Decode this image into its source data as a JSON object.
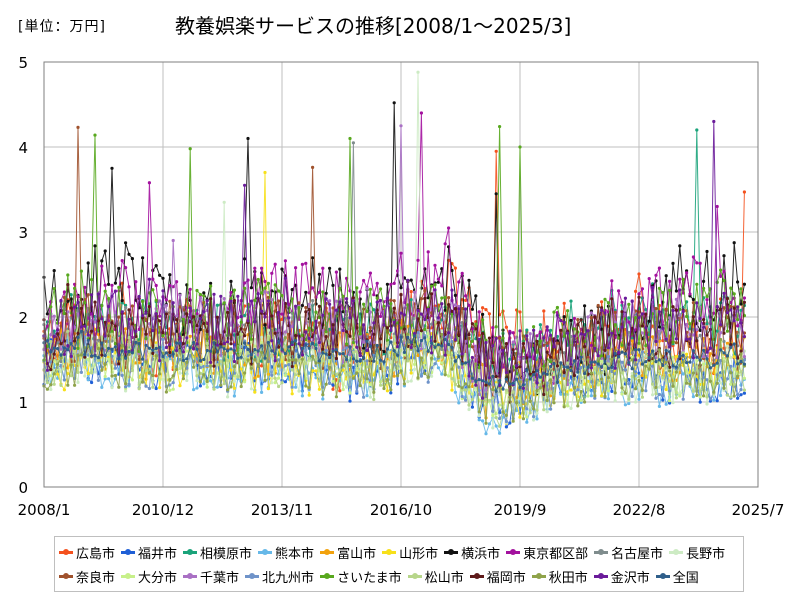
{
  "header": {
    "unit_label": "[単位：万円]",
    "title": "教養娯楽サービスの推移[2008/1～2025/3]"
  },
  "chart_data": {
    "type": "line",
    "title": "教養娯楽サービスの推移[2008/1～2025/3]",
    "unit": "万円",
    "x_range": [
      "2008/1",
      "2025/7"
    ],
    "x_ticks": [
      "2008/1",
      "2010/12",
      "2013/11",
      "2016/10",
      "2019/9",
      "2022/8",
      "2025/7"
    ],
    "ylim": [
      0,
      5
    ],
    "y_ticks": [
      "0",
      "1",
      "2",
      "3",
      "4",
      "5"
    ],
    "grid": true,
    "legend_position": "bottom",
    "series": [
      {
        "name": "広島市",
        "color": "#f4511e",
        "anchors": [
          1.65,
          1.9,
          1.75,
          1.7,
          1.8,
          1.7,
          1.8,
          1.6,
          1.55,
          1.5,
          1.95,
          2.3,
          1.7,
          1.65,
          1.75,
          1.8,
          1.95,
          1.75,
          1.6,
          1.7
        ],
        "noise": 0.42,
        "spikes": [
          {
            "x": "2019/2",
            "y": 3.95
          },
          {
            "x": "2025/3",
            "y": 3.47
          }
        ]
      },
      {
        "name": "福井市",
        "color": "#1f5fd6",
        "anchors": [
          1.45,
          1.55,
          1.4,
          1.45,
          1.5,
          1.35,
          1.5,
          1.4,
          1.3,
          1.25,
          1.6,
          1.55,
          0.95,
          1.05,
          1.15,
          1.3,
          1.35,
          1.25,
          1.3,
          1.35
        ],
        "noise": 0.3,
        "spikes": []
      },
      {
        "name": "相模原市",
        "color": "#1aa37a",
        "anchors": [
          1.8,
          1.95,
          1.85,
          1.8,
          1.9,
          1.75,
          1.85,
          1.7,
          1.75,
          1.8,
          1.95,
          1.9,
          1.45,
          1.5,
          1.65,
          1.75,
          1.85,
          1.9,
          1.85,
          1.9
        ],
        "noise": 0.38,
        "spikes": [
          {
            "x": "2024/1",
            "y": 4.2
          }
        ]
      },
      {
        "name": "熊本市",
        "color": "#66b8e8",
        "anchors": [
          1.35,
          1.45,
          1.4,
          1.35,
          1.4,
          1.3,
          1.4,
          1.35,
          1.25,
          1.3,
          1.5,
          1.4,
          0.75,
          1.0,
          1.1,
          1.2,
          1.25,
          1.2,
          1.2,
          1.25
        ],
        "noise": 0.28,
        "spikes": []
      },
      {
        "name": "富山市",
        "color": "#f2a20d",
        "anchors": [
          1.55,
          1.7,
          1.6,
          1.55,
          1.6,
          1.5,
          1.6,
          1.55,
          1.5,
          1.45,
          1.75,
          1.7,
          1.1,
          1.25,
          1.4,
          1.5,
          1.6,
          1.55,
          1.55,
          1.6
        ],
        "noise": 0.32,
        "spikes": []
      },
      {
        "name": "山形市",
        "color": "#f7e01a",
        "anchors": [
          1.4,
          1.5,
          1.45,
          1.4,
          1.5,
          1.4,
          1.45,
          1.4,
          1.35,
          1.3,
          1.55,
          1.5,
          1.0,
          1.1,
          1.2,
          1.3,
          1.4,
          1.35,
          1.4,
          1.45
        ],
        "noise": 0.33,
        "spikes": [
          {
            "x": "2013/6",
            "y": 3.7
          }
        ]
      },
      {
        "name": "横浜市",
        "color": "#111111",
        "anchors": [
          2.0,
          2.3,
          2.5,
          2.2,
          2.1,
          2.0,
          2.1,
          2.2,
          2.1,
          2.0,
          2.3,
          2.5,
          1.5,
          1.45,
          1.55,
          1.75,
          2.0,
          2.3,
          2.3,
          2.2
        ],
        "noise": 0.48,
        "spikes": [
          {
            "x": "2009/9",
            "y": 3.75
          },
          {
            "x": "2013/1",
            "y": 4.1
          },
          {
            "x": "2016/8",
            "y": 4.52
          },
          {
            "x": "2019/2",
            "y": 3.45
          }
        ]
      },
      {
        "name": "東京都区部",
        "color": "#a3119e",
        "anchors": [
          1.9,
          2.1,
          2.2,
          2.0,
          2.05,
          2.1,
          2.2,
          2.25,
          2.2,
          2.15,
          2.4,
          2.5,
          1.55,
          1.5,
          1.6,
          1.8,
          2.1,
          2.3,
          2.35,
          2.3
        ],
        "noise": 0.45,
        "spikes": [
          {
            "x": "2010/8",
            "y": 3.58
          },
          {
            "x": "2017/4",
            "y": 4.4
          },
          {
            "x": "2024/7",
            "y": 3.3
          }
        ]
      },
      {
        "name": "名古屋市",
        "color": "#7f8c8d",
        "anchors": [
          1.75,
          1.85,
          1.8,
          1.75,
          1.8,
          1.75,
          1.8,
          1.75,
          1.7,
          1.7,
          1.9,
          1.85,
          1.3,
          1.4,
          1.5,
          1.6,
          1.7,
          1.7,
          1.7,
          1.75
        ],
        "noise": 0.33,
        "spikes": [
          {
            "x": "2015/8",
            "y": 4.05
          }
        ]
      },
      {
        "name": "長野市",
        "color": "#cdebc4",
        "anchors": [
          1.45,
          1.55,
          1.5,
          1.4,
          1.5,
          1.4,
          1.5,
          1.45,
          1.4,
          1.35,
          1.6,
          1.55,
          1.0,
          1.1,
          1.2,
          1.3,
          1.35,
          1.3,
          1.3,
          1.35
        ],
        "noise": 0.35,
        "spikes": [
          {
            "x": "2017/3",
            "y": 4.88
          },
          {
            "x": "2012/6",
            "y": 3.35
          }
        ]
      },
      {
        "name": "奈良市",
        "color": "#a0522d",
        "anchors": [
          1.75,
          1.9,
          1.8,
          1.75,
          1.85,
          1.8,
          1.85,
          1.8,
          1.75,
          1.75,
          1.95,
          1.9,
          1.35,
          1.4,
          1.55,
          1.65,
          1.75,
          1.75,
          1.7,
          1.75
        ],
        "noise": 0.4,
        "spikes": [
          {
            "x": "2008/11",
            "y": 4.23
          },
          {
            "x": "2014/8",
            "y": 3.76
          }
        ]
      },
      {
        "name": "大分市",
        "color": "#c7f08a",
        "anchors": [
          1.4,
          1.5,
          1.45,
          1.4,
          1.45,
          1.4,
          1.5,
          1.45,
          1.4,
          1.35,
          1.55,
          1.5,
          1.0,
          1.1,
          1.2,
          1.3,
          1.35,
          1.3,
          1.35,
          1.4
        ],
        "noise": 0.3,
        "spikes": []
      },
      {
        "name": "千葉市",
        "color": "#a970c4",
        "anchors": [
          1.8,
          1.95,
          1.9,
          1.85,
          1.9,
          1.85,
          1.95,
          1.9,
          1.85,
          1.8,
          2.0,
          1.95,
          1.35,
          1.4,
          1.55,
          1.7,
          1.85,
          1.9,
          1.85,
          1.9
        ],
        "noise": 0.38,
        "spikes": [
          {
            "x": "2016/10",
            "y": 4.25
          },
          {
            "x": "2011/3",
            "y": 2.9
          }
        ]
      },
      {
        "name": "北九州市",
        "color": "#6f93c9",
        "anchors": [
          1.4,
          1.5,
          1.45,
          1.4,
          1.5,
          1.4,
          1.45,
          1.4,
          1.35,
          1.3,
          1.55,
          1.5,
          0.95,
          1.05,
          1.15,
          1.25,
          1.3,
          1.3,
          1.3,
          1.35
        ],
        "noise": 0.3,
        "spikes": []
      },
      {
        "name": "さいたま市",
        "color": "#58a81e",
        "anchors": [
          1.9,
          2.05,
          2.0,
          1.95,
          2.0,
          1.95,
          2.05,
          2.0,
          1.95,
          1.9,
          2.1,
          2.05,
          1.5,
          1.55,
          1.7,
          1.85,
          2.0,
          2.05,
          2.0,
          2.05
        ],
        "noise": 0.42,
        "spikes": [
          {
            "x": "2009/4",
            "y": 4.14
          },
          {
            "x": "2011/8",
            "y": 3.98
          },
          {
            "x": "2015/7",
            "y": 4.1
          },
          {
            "x": "2019/3",
            "y": 4.24
          },
          {
            "x": "2019/9",
            "y": 4.0
          }
        ]
      },
      {
        "name": "松山市",
        "color": "#b7d68a",
        "anchors": [
          1.45,
          1.55,
          1.5,
          1.45,
          1.5,
          1.45,
          1.5,
          1.45,
          1.4,
          1.35,
          1.6,
          1.55,
          1.0,
          1.1,
          1.2,
          1.3,
          1.35,
          1.3,
          1.3,
          1.35
        ],
        "noise": 0.33,
        "spikes": []
      },
      {
        "name": "福岡市",
        "color": "#5e1a1a",
        "anchors": [
          1.75,
          1.9,
          1.85,
          1.8,
          1.85,
          1.8,
          1.85,
          1.8,
          1.75,
          1.75,
          1.95,
          1.9,
          1.35,
          1.4,
          1.55,
          1.7,
          1.8,
          1.8,
          1.8,
          1.85
        ],
        "noise": 0.4,
        "spikes": []
      },
      {
        "name": "秋田市",
        "color": "#8fa34a",
        "anchors": [
          1.4,
          1.5,
          1.45,
          1.4,
          1.45,
          1.4,
          1.45,
          1.4,
          1.35,
          1.35,
          1.55,
          1.5,
          1.0,
          1.1,
          1.2,
          1.3,
          1.35,
          1.3,
          1.3,
          1.35
        ],
        "noise": 0.3,
        "spikes": []
      },
      {
        "name": "金沢市",
        "color": "#6a1b9a",
        "anchors": [
          1.75,
          1.95,
          1.9,
          1.85,
          1.9,
          1.85,
          1.9,
          1.85,
          1.8,
          1.8,
          2.0,
          1.95,
          1.4,
          1.45,
          1.6,
          1.75,
          1.85,
          1.9,
          1.85,
          1.9
        ],
        "noise": 0.42,
        "spikes": [
          {
            "x": "2012/12",
            "y": 3.55
          },
          {
            "x": "2024/6",
            "y": 4.3
          }
        ]
      },
      {
        "name": "全国",
        "color": "#2f5f8a",
        "anchors": [
          1.6,
          1.65,
          1.6,
          1.58,
          1.6,
          1.58,
          1.62,
          1.6,
          1.58,
          1.55,
          1.7,
          1.65,
          1.2,
          1.25,
          1.35,
          1.45,
          1.5,
          1.52,
          1.5,
          1.55
        ],
        "noise": 0.12,
        "spikes": []
      }
    ]
  }
}
